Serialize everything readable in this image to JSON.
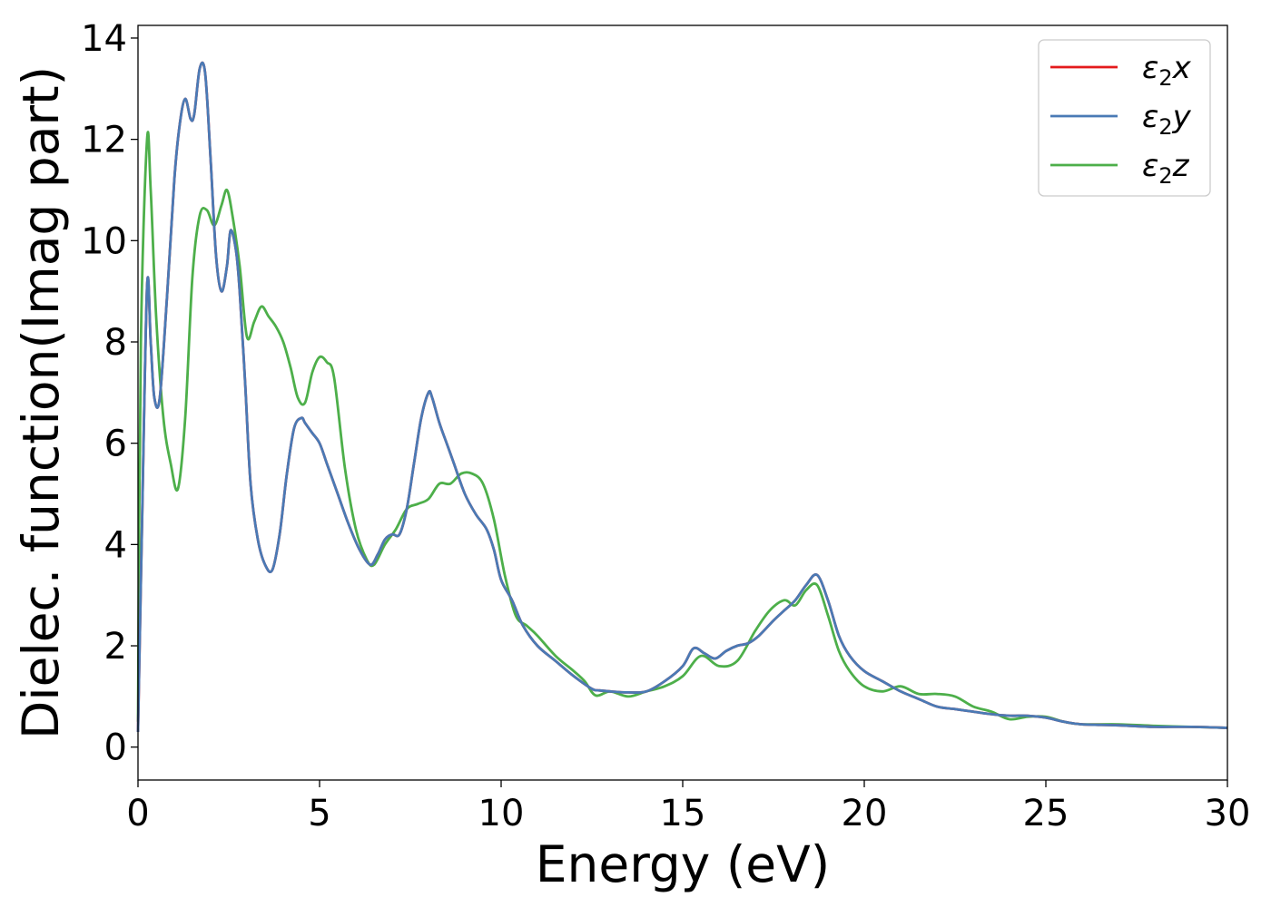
{
  "chart_data": {
    "type": "line",
    "title": "",
    "xlabel": "Energy (eV)",
    "ylabel": "Dielec. function(Imag part)",
    "xlim": [
      0,
      30
    ],
    "ylim": [
      -0.65,
      14.25
    ],
    "xticks": [
      0,
      5,
      10,
      15,
      20,
      25,
      30
    ],
    "yticks": [
      0,
      2,
      4,
      6,
      8,
      10,
      12,
      14
    ],
    "grid": false,
    "legend_position": "top-right",
    "legend_entries": [
      {
        "base": "ε",
        "sub": "2",
        "axis": "x"
      },
      {
        "base": "ε",
        "sub": "2",
        "axis": "y"
      },
      {
        "base": "ε",
        "sub": "2",
        "axis": "z"
      }
    ],
    "series": [
      {
        "name": "ε2x",
        "color": "#e41a1c",
        "x": [
          0,
          0.1,
          0.25,
          0.35,
          0.45,
          0.6,
          0.8,
          1.0,
          1.15,
          1.3,
          1.45,
          1.55,
          1.7,
          1.85,
          2.0,
          2.15,
          2.3,
          2.45,
          2.55,
          2.7,
          2.8,
          2.95,
          3.1,
          3.3,
          3.5,
          3.7,
          3.9,
          4.1,
          4.3,
          4.5,
          4.6,
          4.8,
          5.0,
          5.2,
          5.5,
          5.8,
          6.1,
          6.4,
          6.6,
          6.8,
          7.0,
          7.2,
          7.4,
          7.6,
          7.8,
          8.0,
          8.1,
          8.3,
          8.5,
          8.7,
          9.0,
          9.3,
          9.6,
          9.8,
          10.0,
          10.3,
          10.6,
          11.0,
          11.5,
          12.0,
          12.5,
          12.7,
          13.0,
          13.5,
          14.0,
          14.5,
          15.0,
          15.3,
          15.6,
          15.9,
          16.2,
          16.5,
          16.8,
          17.1,
          17.5,
          17.8,
          18.1,
          18.4,
          18.7,
          19.0,
          19.3,
          19.6,
          20.0,
          20.5,
          21.0,
          21.5,
          22.0,
          22.5,
          23.0,
          23.5,
          24.0,
          24.5,
          25.0,
          25.5,
          26.0,
          27.0,
          28.0,
          29.0,
          30.0
        ],
        "y": [
          0.3,
          4.0,
          9.1,
          8.0,
          6.9,
          6.9,
          8.9,
          11.2,
          12.3,
          12.8,
          12.4,
          12.5,
          13.4,
          13.3,
          11.6,
          9.7,
          9.0,
          9.5,
          10.2,
          9.8,
          9.0,
          7.2,
          5.2,
          4.1,
          3.6,
          3.5,
          4.2,
          5.4,
          6.3,
          6.5,
          6.4,
          6.2,
          6.0,
          5.6,
          5.0,
          4.4,
          3.9,
          3.6,
          3.8,
          4.1,
          4.2,
          4.2,
          4.7,
          5.6,
          6.5,
          7.0,
          6.9,
          6.4,
          6.0,
          5.6,
          5.0,
          4.6,
          4.3,
          3.9,
          3.3,
          2.9,
          2.4,
          2.0,
          1.7,
          1.4,
          1.15,
          1.12,
          1.1,
          1.08,
          1.1,
          1.3,
          1.6,
          1.95,
          1.85,
          1.75,
          1.9,
          2.0,
          2.05,
          2.2,
          2.5,
          2.7,
          2.9,
          3.2,
          3.4,
          2.9,
          2.2,
          1.8,
          1.5,
          1.3,
          1.1,
          0.95,
          0.8,
          0.75,
          0.7,
          0.65,
          0.62,
          0.62,
          0.58,
          0.5,
          0.45,
          0.43,
          0.4,
          0.4,
          0.38
        ]
      },
      {
        "name": "ε2y",
        "color": "#4a7ab5",
        "x": [
          0,
          0.1,
          0.25,
          0.35,
          0.45,
          0.6,
          0.8,
          1.0,
          1.15,
          1.3,
          1.45,
          1.55,
          1.7,
          1.85,
          2.0,
          2.15,
          2.3,
          2.45,
          2.55,
          2.7,
          2.8,
          2.95,
          3.1,
          3.3,
          3.5,
          3.7,
          3.9,
          4.1,
          4.3,
          4.5,
          4.6,
          4.8,
          5.0,
          5.2,
          5.5,
          5.8,
          6.1,
          6.4,
          6.6,
          6.8,
          7.0,
          7.2,
          7.4,
          7.6,
          7.8,
          8.0,
          8.1,
          8.3,
          8.5,
          8.7,
          9.0,
          9.3,
          9.6,
          9.8,
          10.0,
          10.3,
          10.6,
          11.0,
          11.5,
          12.0,
          12.5,
          12.7,
          13.0,
          13.5,
          14.0,
          14.5,
          15.0,
          15.3,
          15.6,
          15.9,
          16.2,
          16.5,
          16.8,
          17.1,
          17.5,
          17.8,
          18.1,
          18.4,
          18.7,
          19.0,
          19.3,
          19.6,
          20.0,
          20.5,
          21.0,
          21.5,
          22.0,
          22.5,
          23.0,
          23.5,
          24.0,
          24.5,
          25.0,
          25.5,
          26.0,
          27.0,
          28.0,
          29.0,
          30.0
        ],
        "y": [
          0.3,
          4.0,
          9.1,
          8.0,
          6.9,
          6.9,
          8.9,
          11.2,
          12.3,
          12.8,
          12.4,
          12.5,
          13.4,
          13.3,
          11.6,
          9.7,
          9.0,
          9.5,
          10.2,
          9.8,
          9.0,
          7.2,
          5.2,
          4.1,
          3.6,
          3.5,
          4.2,
          5.4,
          6.3,
          6.5,
          6.4,
          6.2,
          6.0,
          5.6,
          5.0,
          4.4,
          3.9,
          3.6,
          3.8,
          4.1,
          4.2,
          4.2,
          4.7,
          5.6,
          6.5,
          7.0,
          6.9,
          6.4,
          6.0,
          5.6,
          5.0,
          4.6,
          4.3,
          3.9,
          3.3,
          2.9,
          2.4,
          2.0,
          1.7,
          1.4,
          1.15,
          1.12,
          1.1,
          1.08,
          1.1,
          1.3,
          1.6,
          1.95,
          1.85,
          1.75,
          1.9,
          2.0,
          2.05,
          2.2,
          2.5,
          2.7,
          2.9,
          3.2,
          3.4,
          2.9,
          2.2,
          1.8,
          1.5,
          1.3,
          1.1,
          0.95,
          0.8,
          0.75,
          0.7,
          0.65,
          0.62,
          0.62,
          0.58,
          0.5,
          0.45,
          0.43,
          0.4,
          0.4,
          0.38
        ]
      },
      {
        "name": "ε2z",
        "color": "#4daf4a",
        "x": [
          0,
          0.08,
          0.25,
          0.35,
          0.5,
          0.7,
          0.9,
          1.1,
          1.3,
          1.5,
          1.7,
          1.9,
          2.1,
          2.3,
          2.45,
          2.6,
          2.8,
          3.0,
          3.2,
          3.4,
          3.6,
          3.8,
          4.0,
          4.2,
          4.4,
          4.6,
          4.8,
          5.0,
          5.2,
          5.4,
          5.7,
          6.0,
          6.3,
          6.5,
          6.8,
          7.1,
          7.4,
          7.7,
          8.0,
          8.3,
          8.6,
          8.9,
          9.2,
          9.5,
          9.8,
          10.1,
          10.4,
          10.7,
          11.0,
          11.5,
          12.0,
          12.3,
          12.6,
          13.0,
          13.5,
          14.0,
          14.5,
          15.0,
          15.5,
          16.0,
          16.5,
          17.0,
          17.4,
          17.8,
          18.1,
          18.4,
          18.7,
          19.0,
          19.3,
          19.6,
          20.0,
          20.5,
          21.0,
          21.5,
          22.0,
          22.5,
          23.0,
          23.5,
          24.0,
          24.5,
          25.0,
          25.5,
          26.0,
          27.0,
          28.0,
          29.0,
          30.0
        ],
        "y": [
          0.5,
          8.0,
          12.0,
          11.0,
          8.5,
          6.5,
          5.6,
          5.1,
          6.5,
          9.3,
          10.5,
          10.6,
          10.3,
          10.7,
          11.0,
          10.5,
          9.5,
          8.1,
          8.4,
          8.7,
          8.5,
          8.3,
          8.0,
          7.5,
          6.9,
          6.8,
          7.4,
          7.7,
          7.6,
          7.3,
          5.5,
          4.3,
          3.7,
          3.6,
          4.0,
          4.3,
          4.7,
          4.8,
          4.9,
          5.2,
          5.2,
          5.4,
          5.4,
          5.2,
          4.5,
          3.4,
          2.6,
          2.4,
          2.2,
          1.8,
          1.5,
          1.3,
          1.02,
          1.1,
          1.0,
          1.1,
          1.2,
          1.4,
          1.8,
          1.6,
          1.7,
          2.3,
          2.7,
          2.9,
          2.8,
          3.1,
          3.2,
          2.6,
          1.9,
          1.5,
          1.2,
          1.1,
          1.2,
          1.05,
          1.05,
          1.0,
          0.8,
          0.7,
          0.55,
          0.6,
          0.6,
          0.5,
          0.45,
          0.45,
          0.42,
          0.4,
          0.38
        ]
      }
    ]
  }
}
